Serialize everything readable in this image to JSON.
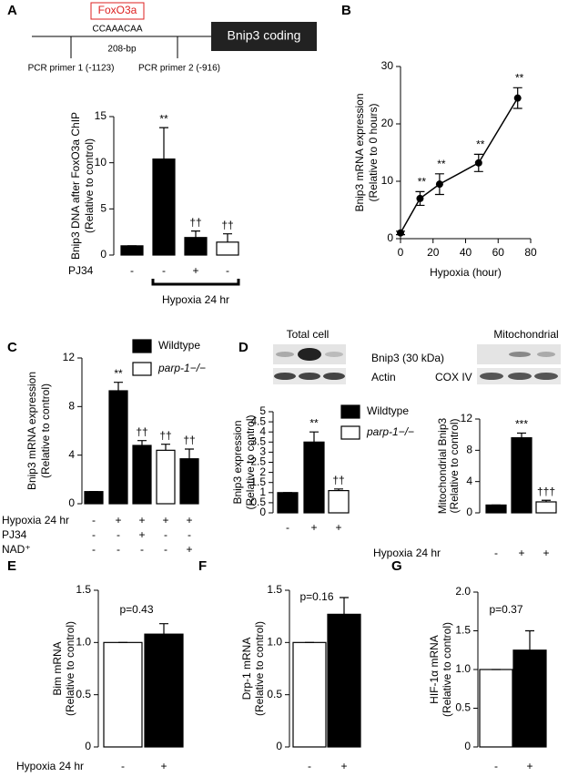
{
  "diagram": {
    "label": "A",
    "tf": "FoxO3a",
    "motif": "CCAAACAA",
    "length": "208-bp",
    "gene": "Bnip3 coding",
    "primer1": "PCR primer 1 (-1123)",
    "primer2": "PCR primer 2 (-916)"
  },
  "blots": {
    "total": "Total cell",
    "mito": "Mitochondrial",
    "bnip3": "Bnip3 (30 kDa)",
    "actin": "Actin",
    "cox": "COX IV"
  },
  "chart_data": [
    {
      "type": "bar",
      "label": null,
      "ylabel": [
        "Bnip3 DNA after FoxO3a  ChIP",
        "(Relative to control)"
      ],
      "values": [
        1,
        10.4,
        1.9,
        1.4
      ],
      "errors": [
        0,
        3.4,
        0.7,
        0.9
      ],
      "colors": [
        "#000000",
        "#000000",
        "#000000",
        "#ffffff"
      ],
      "annotations": [
        null,
        "**",
        "††",
        "††"
      ],
      "ylim": [
        0,
        15
      ],
      "yticks": [
        0,
        5,
        10,
        15
      ],
      "rows": [
        {
          "name": "PJ34",
          "signs": [
            "-",
            "-",
            "+",
            "-"
          ]
        }
      ],
      "bracket": "Hypoxia 24 hr"
    },
    {
      "type": "line",
      "label": "B",
      "ylabel": [
        "Bnip3 mRNA expression",
        "(Relative to 0 hours)"
      ],
      "xlabel": "Hypoxia (hour)",
      "x": [
        0,
        12,
        24,
        48,
        72
      ],
      "values": [
        1,
        7,
        9.5,
        13.2,
        24.5
      ],
      "errors": [
        0.3,
        1.2,
        1.8,
        1.5,
        1.8
      ],
      "color": "#000000",
      "annotations": [
        null,
        "**",
        "**",
        "**",
        "**"
      ],
      "xlim": [
        0,
        80
      ],
      "xticks": [
        0,
        20,
        40,
        60,
        80
      ],
      "ylim": [
        0,
        30
      ],
      "yticks": [
        0,
        10,
        20,
        30
      ]
    },
    {
      "type": "bar",
      "label": "C",
      "ylabel": [
        "Bnip3 mRNA expression",
        "(Relative to control)"
      ],
      "values": [
        1,
        9.3,
        4.8,
        4.4,
        3.7
      ],
      "errors": [
        0,
        0.7,
        0.4,
        0.5,
        0.8
      ],
      "colors": [
        "#000000",
        "#000000",
        "#000000",
        "#ffffff",
        "#000000"
      ],
      "annotations": [
        null,
        "**",
        "††",
        "††",
        "††"
      ],
      "ylim": [
        0,
        12
      ],
      "yticks": [
        0,
        4,
        8,
        12
      ],
      "legend": [
        {
          "name": "Wildtype",
          "color": "#000000"
        },
        {
          "name": "parp-1−/−",
          "color": "#ffffff"
        }
      ],
      "rows": [
        {
          "name": "Hypoxia 24 hr",
          "signs": [
            "-",
            "+",
            "+",
            "+",
            "+"
          ]
        },
        {
          "name": "PJ34",
          "signs": [
            "-",
            "-",
            "+",
            "-",
            "-"
          ]
        },
        {
          "name": "NAD⁺",
          "signs": [
            "-",
            "-",
            "-",
            "-",
            "+"
          ]
        }
      ]
    },
    {
      "type": "bar",
      "label": "D",
      "ylabel": [
        "Bnip3 expression",
        "(Relative to control)"
      ],
      "values": [
        1,
        3.5,
        1.1
      ],
      "errors": [
        0,
        0.5,
        0.08
      ],
      "colors": [
        "#000000",
        "#000000",
        "#ffffff"
      ],
      "annotations": [
        null,
        "**",
        "††"
      ],
      "ylim": [
        0,
        5
      ],
      "yticks": [
        0,
        0.5,
        1,
        1.5,
        2,
        2.5,
        3,
        3.5,
        4,
        4.5,
        5
      ],
      "legend": [
        {
          "name": "Wildtype",
          "color": "#000000"
        },
        {
          "name": "parp-1−/−",
          "color": "#ffffff"
        }
      ],
      "rows": [
        {
          "signs": [
            "-",
            "+",
            "+"
          ]
        }
      ]
    },
    {
      "type": "bar",
      "label": null,
      "ylabel": [
        "Mitochondrial Bnip3",
        "(Relative to control)"
      ],
      "values": [
        1,
        9.6,
        1.4
      ],
      "errors": [
        0,
        0.6,
        0.2
      ],
      "colors": [
        "#000000",
        "#000000",
        "#ffffff"
      ],
      "annotations": [
        null,
        "***",
        "†††"
      ],
      "ylim": [
        0,
        12
      ],
      "yticks": [
        0,
        4,
        8,
        12
      ],
      "rows": [
        {
          "name": "Hypoxia 24 hr",
          "signs": [
            "-",
            "+",
            "+"
          ]
        }
      ]
    },
    {
      "type": "bar",
      "label": "E",
      "ylabel": [
        "Bim mRNA",
        "(Relative to control)"
      ],
      "ptext": "p=0.43",
      "values": [
        1,
        1.08
      ],
      "errors": [
        0,
        0.1
      ],
      "colors": [
        "#ffffff",
        "#000000"
      ],
      "ylim": [
        0,
        1.5
      ],
      "yticks": [
        0,
        0.5,
        {
          "value": 1,
          "label": "1.0"
        },
        1.5
      ],
      "rows": [
        {
          "name": "Hypoxia 24 hr",
          "signs": [
            "-",
            "+"
          ]
        }
      ]
    },
    {
      "type": "bar",
      "label": "F",
      "ylabel": [
        "Drp-1 mRNA",
        "(Relative to control)"
      ],
      "ptext": "p=0.16",
      "values": [
        1,
        1.27
      ],
      "errors": [
        0,
        0.16
      ],
      "colors": [
        "#ffffff",
        "#000000"
      ],
      "ylim": [
        0,
        1.5
      ],
      "yticks": [
        0,
        0.5,
        {
          "value": 1,
          "label": "1.0"
        },
        1.5
      ],
      "rows": [
        {
          "signs": [
            "-",
            "+"
          ]
        }
      ]
    },
    {
      "type": "bar",
      "label": "G",
      "ylabel": [
        "HIF-1α mRNA",
        "(Relative to control)"
      ],
      "ptext": "p=0.37",
      "values": [
        1,
        1.25
      ],
      "errors": [
        0,
        0.25
      ],
      "colors": [
        "#ffffff",
        "#000000"
      ],
      "ylim": [
        0,
        2
      ],
      "yticks": [
        0,
        0.5,
        {
          "value": 1,
          "label": "1.0"
        },
        1.5,
        {
          "value": 2,
          "label": "2.0"
        }
      ],
      "rows": [
        {
          "signs": [
            "-",
            "+"
          ]
        }
      ]
    }
  ]
}
